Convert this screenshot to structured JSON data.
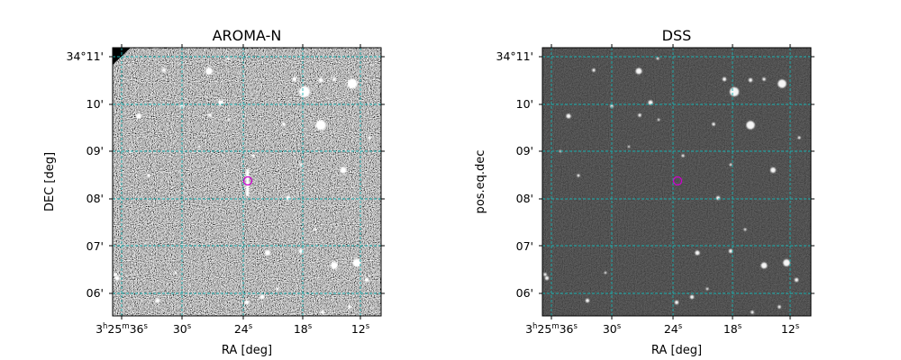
{
  "panels": [
    {
      "id": "left",
      "title": "AROMA-N",
      "xlabel": "RA [deg]",
      "ylabel": "DEC [deg]",
      "style": "noisy",
      "dec_ticks": [
        "34°11'",
        "10'",
        "09'",
        "08'",
        "07'",
        "06'"
      ],
      "ra_ticks": [
        {
          "h": "3",
          "hs": "h",
          "m": "25",
          "ms": "m",
          "s": "36",
          "ss": "s"
        },
        {
          "s": "30",
          "ss": "s"
        },
        {
          "s": "24",
          "ss": "s"
        },
        {
          "s": "18",
          "ss": "s"
        },
        {
          "s": "12",
          "ss": "s"
        }
      ]
    },
    {
      "id": "right",
      "title": "DSS",
      "xlabel": "RA [deg]",
      "ylabel": "pos.eq.dec",
      "style": "dark",
      "dec_ticks": [
        "34°11'",
        "10'",
        "09'",
        "08'",
        "07'",
        "06'"
      ],
      "ra_ticks": [
        {
          "h": "3",
          "hs": "h",
          "m": "25",
          "ms": "m",
          "s": "36",
          "ss": "s"
        },
        {
          "s": "30",
          "ss": "s"
        },
        {
          "s": "24",
          "ss": "s"
        },
        {
          "s": "18",
          "ss": "s"
        },
        {
          "s": "12",
          "ss": "s"
        }
      ]
    }
  ],
  "colors": {
    "grid": "#17b0b0",
    "marker": "#d000d0",
    "noise_bg": "#7a7a7a",
    "dark_bg": "#111111",
    "star": "#ffffff"
  }
}
